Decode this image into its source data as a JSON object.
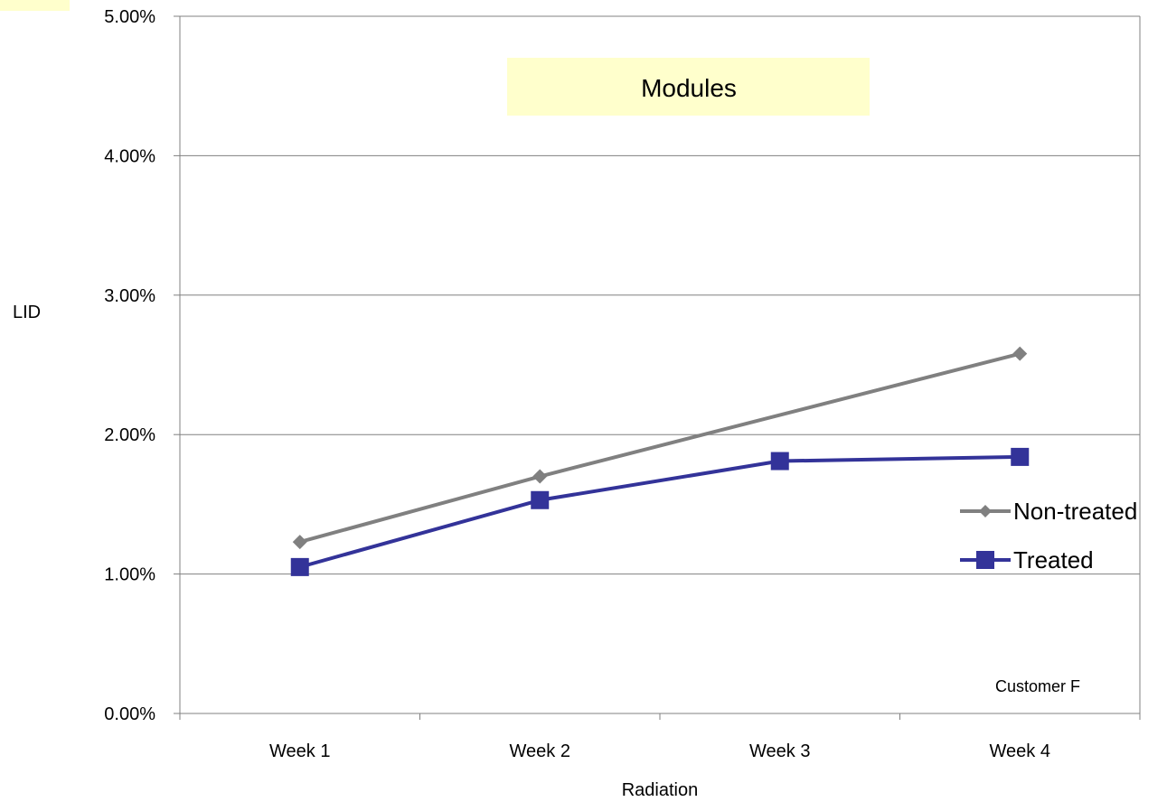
{
  "chart_data": {
    "type": "line",
    "title": "Modules",
    "xlabel": "Radiation",
    "ylabel": "LID",
    "annotation": "Customer F",
    "categories": [
      "Week 1",
      "Week 2",
      "Week 3",
      "Week 4"
    ],
    "ylim": [
      0,
      0.05
    ],
    "yticks": [
      0,
      0.01,
      0.02,
      0.03,
      0.04,
      0.05
    ],
    "ytick_labels": [
      "0.00%",
      "1.00%",
      "2.00%",
      "3.00%",
      "4.00%",
      "5.00%"
    ],
    "grid": true,
    "legend_position": "right",
    "series": [
      {
        "name": "Non-treated",
        "values": [
          0.0123,
          0.017,
          null,
          0.0258
        ],
        "color": "#808080",
        "marker": "diamond"
      },
      {
        "name": "Treated",
        "values": [
          0.0105,
          0.0153,
          0.0181,
          0.0184
        ],
        "color": "#333399",
        "marker": "square"
      }
    ],
    "colors": {
      "title_box": "#FFFFCC",
      "gridline": "#808080",
      "axis": "#808080"
    }
  }
}
